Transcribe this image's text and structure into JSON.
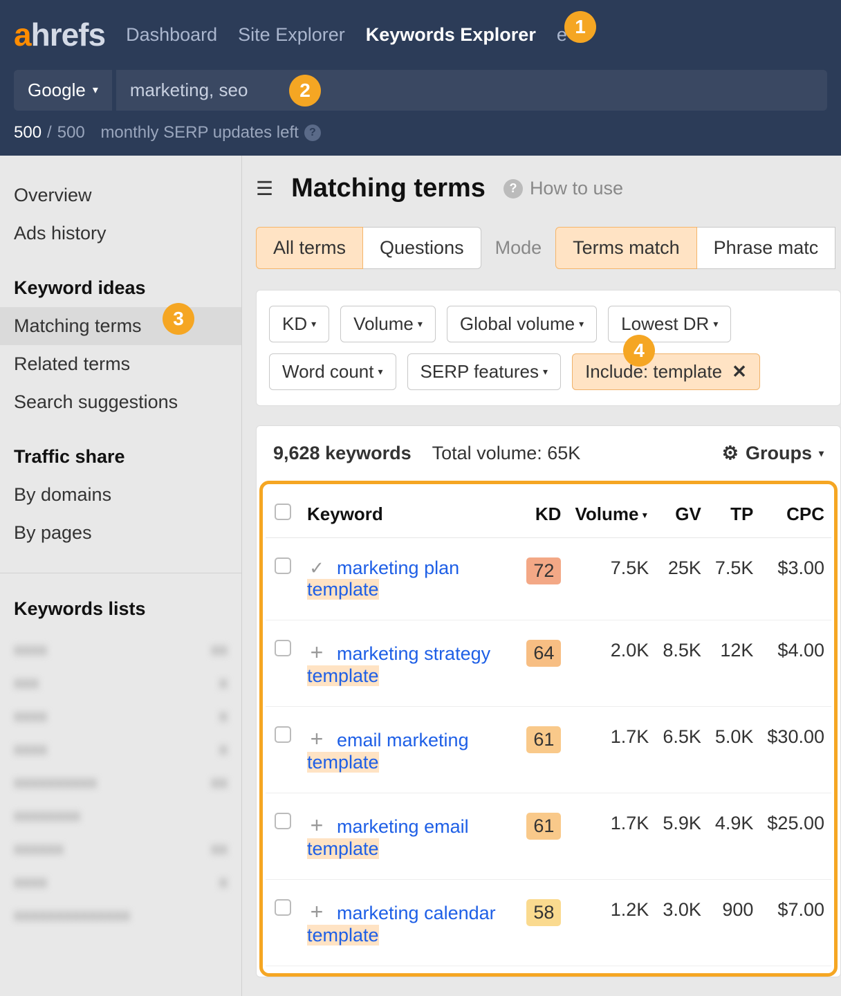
{
  "brand": {
    "a": "a",
    "rest": "hrefs"
  },
  "nav": {
    "dashboard": "Dashboard",
    "site_explorer": "Site Explorer",
    "keywords_explorer": "Keywords Explorer",
    "more": "e"
  },
  "search": {
    "engine": "Google",
    "keywords": "marketing, seo"
  },
  "serp_quota": {
    "used": "500",
    "total": "500",
    "label": "monthly SERP updates left"
  },
  "sidebar": {
    "overview": "Overview",
    "ads_history": "Ads history",
    "head_ideas": "Keyword ideas",
    "matching_terms": "Matching terms",
    "related_terms": "Related terms",
    "search_suggestions": "Search suggestions",
    "head_traffic": "Traffic share",
    "by_domains": "By domains",
    "by_pages": "By pages",
    "head_lists": "Keywords lists"
  },
  "main": {
    "title": "Matching terms",
    "how_to_use": "How to use",
    "tabs": {
      "all_terms": "All terms",
      "questions": "Questions",
      "mode": "Mode",
      "terms_match": "Terms match",
      "phrase_match": "Phrase matc"
    },
    "filters": {
      "kd": "KD",
      "volume": "Volume",
      "global_volume": "Global volume",
      "lowest_dr": "Lowest DR",
      "word_count": "Word count",
      "serp_features": "SERP features",
      "include": "Include: template"
    },
    "results": {
      "count": "9,628 keywords",
      "total_volume": "Total volume: 65K",
      "groups": "Groups"
    },
    "columns": {
      "keyword": "Keyword",
      "kd": "KD",
      "volume": "Volume",
      "gv": "GV",
      "tp": "TP",
      "cpc": "CPC"
    }
  },
  "kd_colors": {
    "72": "#f3a886",
    "64": "#f7be83",
    "61": "#f9c98a",
    "58": "#fada8f"
  },
  "rows": [
    {
      "pre": "marketing plan ",
      "hl": "template",
      "post": "",
      "kd": "72",
      "vol": "7.5K",
      "gv": "25K",
      "tp": "7.5K",
      "cpc": "$3.00",
      "checked": true
    },
    {
      "pre": "marketing strategy ",
      "hl": "template",
      "post": "",
      "kd": "64",
      "vol": "2.0K",
      "gv": "8.5K",
      "tp": "12K",
      "cpc": "$4.00",
      "checked": false
    },
    {
      "pre": "email marketing ",
      "hl": "template",
      "post": "",
      "kd": "61",
      "vol": "1.7K",
      "gv": "6.5K",
      "tp": "5.0K",
      "cpc": "$30.00",
      "checked": false
    },
    {
      "pre": "marketing email ",
      "hl": "template",
      "post": "",
      "kd": "61",
      "vol": "1.7K",
      "gv": "5.9K",
      "tp": "4.9K",
      "cpc": "$25.00",
      "checked": false
    },
    {
      "pre": "marketing calendar ",
      "hl": "template",
      "post": "",
      "kd": "58",
      "vol": "1.2K",
      "gv": "3.0K",
      "tp": "900",
      "cpc": "$7.00",
      "checked": false
    }
  ],
  "steps": {
    "1": "1",
    "2": "2",
    "3": "3",
    "4": "4"
  },
  "accent": "#f5a623",
  "caret": "▾",
  "sliders": "≡"
}
